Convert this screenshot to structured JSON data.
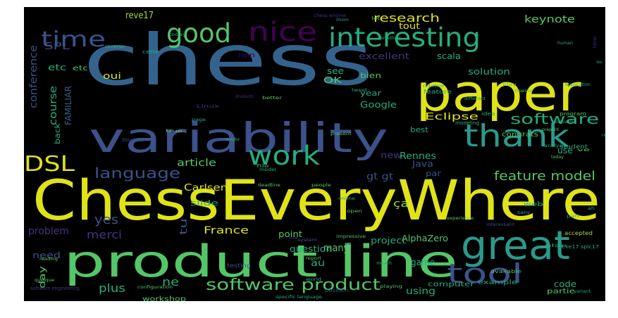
{
  "word_cloud": {
    "background": "#000000",
    "palette": {
      "yellow": "#dfe318",
      "lime": "#a2da37",
      "green": "#55c667",
      "teal": "#26ad81",
      "cyan": "#2a9a8b",
      "blue": "#33638d",
      "steel": "#3b528b",
      "indigo": "#46337e",
      "purple": "#440154"
    },
    "words": [
      {
        "text": "chess",
        "color": "blue"
      },
      {
        "text": "ChessEveryWhere",
        "color": "yellow"
      },
      {
        "text": "product line",
        "color": "green"
      },
      {
        "text": "paper",
        "color": "yellow"
      },
      {
        "text": "variability",
        "color": "steel"
      },
      {
        "text": "great",
        "color": "cyan"
      },
      {
        "text": "interesting",
        "color": "teal"
      },
      {
        "text": "thank",
        "color": "cyan"
      },
      {
        "text": "nice",
        "color": "purple"
      },
      {
        "text": "good",
        "color": "green"
      },
      {
        "text": "time",
        "color": "steel"
      },
      {
        "text": "work",
        "color": "teal"
      },
      {
        "text": "tool",
        "color": "steel"
      },
      {
        "text": "DSL",
        "color": "yellow"
      },
      {
        "text": "software product",
        "color": "green"
      },
      {
        "text": "language",
        "color": "steel"
      },
      {
        "text": "software",
        "color": "teal"
      },
      {
        "text": "feature model",
        "color": "green"
      },
      {
        "text": "research",
        "color": "yellow"
      },
      {
        "text": "keynote",
        "color": "green"
      },
      {
        "text": "excellent",
        "color": "indigo"
      },
      {
        "text": "scala",
        "color": "teal"
      },
      {
        "text": "solution",
        "color": "teal"
      },
      {
        "text": "conference",
        "color": "steel"
      },
      {
        "text": "Eclipse",
        "color": "yellow"
      },
      {
        "text": "Google",
        "color": "teal"
      },
      {
        "text": "Carlsen",
        "color": "yellow"
      },
      {
        "text": "article",
        "color": "green"
      },
      {
        "text": "Rennes",
        "color": "teal"
      },
      {
        "text": "Java",
        "color": "steel"
      },
      {
        "text": "France",
        "color": "yellow"
      },
      {
        "text": "merci",
        "color": "indigo"
      },
      {
        "text": "yes",
        "color": "steel"
      },
      {
        "text": "AlphaZero",
        "color": "green"
      },
      {
        "text": "project",
        "color": "teal"
      },
      {
        "text": "question",
        "color": "teal"
      },
      {
        "text": "problem",
        "color": "indigo"
      },
      {
        "text": "point",
        "color": "green"
      },
      {
        "text": "game",
        "color": "teal"
      },
      {
        "text": "code",
        "color": "teal"
      },
      {
        "text": "plus",
        "color": "teal"
      },
      {
        "text": "ne",
        "color": "teal"
      },
      {
        "text": "tu",
        "color": "steel"
      },
      {
        "text": "oui",
        "color": "yellow"
      },
      {
        "text": "OK",
        "color": "green"
      },
      {
        "text": "etc",
        "color": "teal"
      },
      {
        "text": "SPL",
        "color": "steel"
      },
      {
        "text": "course",
        "color": "teal"
      },
      {
        "text": "FAMILIAR",
        "color": "blue"
      },
      {
        "text": "back",
        "color": "teal"
      },
      {
        "text": "tout",
        "color": "yellow"
      },
      {
        "text": "reve17",
        "color": "lime"
      },
      {
        "text": "etc",
        "color": "green"
      },
      {
        "text": "non",
        "color": "purple"
      },
      {
        "text": "see",
        "color": "teal"
      },
      {
        "text": "bien",
        "color": "green"
      },
      {
        "text": "year",
        "color": "teal"
      },
      {
        "text": "best",
        "color": "teal"
      },
      {
        "text": "congrats",
        "color": "green"
      },
      {
        "text": "use",
        "color": "teal"
      },
      {
        "text": "new",
        "color": "indigo"
      },
      {
        "text": "par",
        "color": "steel"
      },
      {
        "text": "gt gt",
        "color": "steel"
      },
      {
        "text": "slide",
        "color": "teal"
      },
      {
        "text": "ça",
        "color": "lime"
      },
      {
        "text": "many",
        "color": "green"
      },
      {
        "text": "au",
        "color": "teal"
      },
      {
        "text": "using",
        "color": "teal"
      },
      {
        "text": "need",
        "color": "steel"
      },
      {
        "text": "day",
        "color": "green"
      },
      {
        "text": "workshop",
        "color": "green"
      },
      {
        "text": "partie",
        "color": "green"
      },
      {
        "text": "computer",
        "color": "teal"
      },
      {
        "text": "example",
        "color": "teal"
      },
      {
        "text": "web",
        "color": "teal"
      },
      {
        "text": "chess engine",
        "color": "indigo"
      },
      {
        "text": "feature",
        "color": "teal"
      },
      {
        "text": "testing",
        "color": "steel"
      },
      {
        "text": "accepted",
        "color": "lime"
      },
      {
        "text": "position",
        "color": "steel"
      },
      {
        "text": "configuration",
        "color": "green"
      },
      {
        "text": "playing",
        "color": "green"
      },
      {
        "text": "idea",
        "color": "teal"
      },
      {
        "text": "reve17 splc17",
        "color": "teal"
      },
      {
        "text": "student",
        "color": "teal"
      },
      {
        "text": "program",
        "color": "green"
      },
      {
        "text": "modeling",
        "color": "teal"
      },
      {
        "text": "available",
        "color": "green"
      },
      {
        "text": "specific language",
        "color": "teal"
      },
      {
        "text": "cette",
        "color": "teal"
      },
      {
        "text": "today",
        "color": "teal"
      },
      {
        "text": "people",
        "color": "green"
      },
      {
        "text": "deadline",
        "color": "green"
      },
      {
        "text": "interessant",
        "color": "steel"
      },
      {
        "text": "Stockfish",
        "color": "steel"
      },
      {
        "text": "related",
        "color": "teal"
      },
      {
        "text": "play",
        "color": "green"
      },
      {
        "text": "quelque",
        "color": "green"
      },
      {
        "text": "software engineering",
        "color": "indigo"
      },
      {
        "text": "mon",
        "color": "teal"
      },
      {
        "text": "lot",
        "color": "green"
      },
      {
        "text": "human",
        "color": "teal"
      },
      {
        "text": "application",
        "color": "teal"
      },
      {
        "text": "page",
        "color": "teal"
      },
      {
        "text": "analysis",
        "color": "teal"
      },
      {
        "text": "better",
        "color": "green"
      },
      {
        "text": "present",
        "color": "green"
      },
      {
        "text": "model",
        "color": "teal"
      },
      {
        "text": "thesis",
        "color": "green"
      },
      {
        "text": "world",
        "color": "teal"
      },
      {
        "text": "system",
        "color": "steel"
      },
      {
        "text": "report",
        "color": "green"
      },
      {
        "text": "much",
        "color": "teal"
      },
      {
        "text": "impressive",
        "color": "green"
      },
      {
        "text": "file",
        "color": "teal"
      },
      {
        "text": "variant",
        "color": "teal"
      },
      {
        "text": "sans",
        "color": "teal"
      },
      {
        "text": "open",
        "color": "green"
      },
      {
        "text": "online",
        "color": "teal"
      },
      {
        "text": "experience",
        "color": "green"
      },
      {
        "text": "part",
        "color": "teal"
      },
      {
        "text": "ah",
        "color": "teal"
      },
      {
        "text": "tweet",
        "color": "teal"
      },
      {
        "text": "via",
        "color": "indigo"
      },
      {
        "text": "vs",
        "color": "steel"
      },
      {
        "text": "reading",
        "color": "green"
      },
      {
        "text": "something",
        "color": "teal"
      },
      {
        "text": "reverse",
        "color": "teal"
      },
      {
        "text": "tutorial",
        "color": "indigo"
      },
      {
        "text": "plan",
        "color": "teal"
      },
      {
        "text": "redevable",
        "color": "teal"
      },
      {
        "text": "students",
        "color": "indigo"
      },
      {
        "text": "maybe",
        "color": "teal"
      },
      {
        "text": "issue",
        "color": "teal"
      },
      {
        "text": "ve",
        "color": "green"
      },
      {
        "text": "right",
        "color": "teal"
      },
      {
        "text": "true",
        "color": "green"
      },
      {
        "text": "Linux",
        "color": "indigo"
      },
      {
        "text": "different",
        "color": "teal"
      },
      {
        "text": "preprint",
        "color": "green"
      },
      {
        "text": "today",
        "color": "green"
      },
      {
        "text": "uses",
        "color": "teal"
      }
    ]
  }
}
